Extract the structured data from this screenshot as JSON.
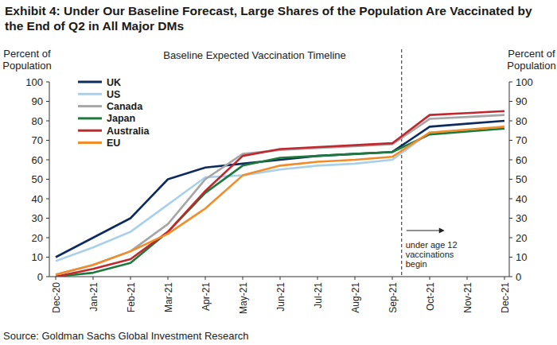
{
  "chart_data": {
    "type": "line",
    "title": "Exhibit 4: Under Our Baseline Forecast, Large Shares of the Population Are Vaccinated by the End of Q2 in All Major DMs",
    "subtitle": "Baseline Expected Vaccination Timeline",
    "y_label": "Percent of Population",
    "y2_label": "Percent of Population",
    "source": "Source: Goldman Sachs Global Investment Research",
    "annotation": {
      "text": [
        "under age 12",
        "vaccinations",
        "begin"
      ],
      "between": [
        "Sep-21",
        "Oct-21"
      ]
    },
    "categories": [
      "Dec-20",
      "Jan-21",
      "Feb-21",
      "Mar-21",
      "Apr-21",
      "May-21",
      "Jun-21",
      "Jul-21",
      "Aug-21",
      "Sep-21",
      "Oct-21",
      "Nov-21",
      "Dec-21"
    ],
    "series": [
      {
        "name": "UK",
        "color": "#0d2b5e",
        "values": [
          10,
          20,
          30,
          50,
          56,
          58,
          60,
          62,
          63,
          64,
          77,
          78.5,
          80
        ]
      },
      {
        "name": "US",
        "color": "#a9d0ea",
        "values": [
          8,
          15,
          23,
          37,
          51,
          52,
          55,
          57,
          58,
          60,
          74,
          75,
          76
        ]
      },
      {
        "name": "Canada",
        "color": "#a6a6a6",
        "values": [
          1,
          6,
          13,
          27,
          50,
          63,
          65,
          66,
          67,
          68,
          81,
          82,
          83
        ]
      },
      {
        "name": "Japan",
        "color": "#1e7a3c",
        "values": [
          0,
          2,
          7,
          23,
          43,
          57,
          61,
          62,
          63,
          64,
          73,
          74.5,
          76
        ]
      },
      {
        "name": "Australia",
        "color": "#c0282e",
        "values": [
          0,
          4,
          9,
          23,
          44,
          62,
          65.5,
          66.5,
          67.5,
          68.5,
          83,
          84,
          85
        ]
      },
      {
        "name": "EU",
        "color": "#f28c28",
        "values": [
          1,
          6,
          13,
          22,
          35,
          52,
          57,
          59,
          60,
          61.5,
          74,
          75.5,
          77
        ]
      }
    ],
    "ylim": [
      0,
      100
    ],
    "yticks": [
      0,
      10,
      20,
      30,
      40,
      50,
      60,
      70,
      80,
      90,
      100
    ],
    "y2lim": [
      0,
      100
    ],
    "y2ticks": [
      0,
      10,
      20,
      30,
      40,
      50,
      60,
      70,
      80,
      90,
      100
    ],
    "grid": false,
    "legend": "top-left"
  }
}
